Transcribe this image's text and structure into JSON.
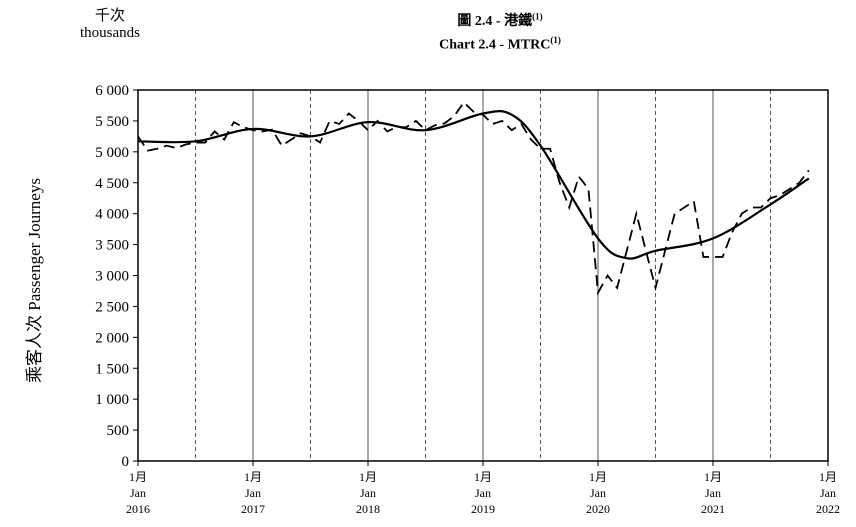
{
  "chart_data": {
    "type": "line",
    "title": "圖 2.4 -  港鐵",
    "title_sup": "(1)",
    "subtitle": "Chart 2.4 -  MTRC",
    "subtitle_sup": "(1)",
    "unit_label_zh": "千次",
    "unit_label_en": "thousands",
    "ylabel": "乘客人次  Passenger Journeys",
    "ylim": [
      0,
      6000
    ],
    "yticks": [
      0,
      500,
      1000,
      1500,
      2000,
      2500,
      3000,
      3500,
      4000,
      4500,
      5000,
      5500,
      6000
    ],
    "ytick_labels": [
      "0",
      "500",
      "1 000",
      "1 500",
      "2 000",
      "2 500",
      "3 000",
      "3 500",
      "4 000",
      "4 500",
      "5 000",
      "5 500",
      "6 000"
    ],
    "xlim": [
      "2016-01",
      "2022-01"
    ],
    "xticks": [
      {
        "zh": "1月",
        "en": "Jan",
        "year": "2016"
      },
      {
        "zh": "1月",
        "en": "Jan",
        "year": "2017"
      },
      {
        "zh": "1月",
        "en": "Jan",
        "year": "2018"
      },
      {
        "zh": "1月",
        "en": "Jan",
        "year": "2019"
      },
      {
        "zh": "1月",
        "en": "Jan",
        "year": "2020"
      },
      {
        "zh": "1月",
        "en": "Jan",
        "year": "2021"
      },
      {
        "zh": "1月",
        "en": "Jan",
        "year": "2022"
      }
    ],
    "series": [
      {
        "style": "dashed",
        "x": [
          "2016-01",
          "2016-02",
          "2016-03",
          "2016-04",
          "2016-05",
          "2016-06",
          "2016-07",
          "2016-08",
          "2016-09",
          "2016-10",
          "2016-11",
          "2016-12",
          "2017-01",
          "2017-02",
          "2017-03",
          "2017-04",
          "2017-05",
          "2017-06",
          "2017-07",
          "2017-08",
          "2017-09",
          "2017-10",
          "2017-11",
          "2017-12",
          "2018-01",
          "2018-02",
          "2018-03",
          "2018-04",
          "2018-05",
          "2018-06",
          "2018-07",
          "2018-08",
          "2018-09",
          "2018-10",
          "2018-11",
          "2018-12",
          "2019-01",
          "2019-02",
          "2019-03",
          "2019-04",
          "2019-05",
          "2019-06",
          "2019-07",
          "2019-08",
          "2019-09",
          "2019-10",
          "2019-11",
          "2019-12",
          "2020-01",
          "2020-02",
          "2020-03",
          "2020-04",
          "2020-05",
          "2020-06",
          "2020-07",
          "2020-08",
          "2020-09",
          "2020-10",
          "2020-11",
          "2020-12",
          "2021-01",
          "2021-02",
          "2021-03",
          "2021-04",
          "2021-05",
          "2021-06",
          "2021-07",
          "2021-08",
          "2021-09",
          "2021-10",
          "2021-11"
        ],
        "values": [
          5250,
          5020,
          5050,
          5100,
          5060,
          5120,
          5150,
          5150,
          5330,
          5200,
          5480,
          5400,
          5350,
          5330,
          5360,
          5100,
          5200,
          5300,
          5250,
          5150,
          5500,
          5450,
          5620,
          5500,
          5350,
          5500,
          5330,
          5400,
          5400,
          5500,
          5350,
          5430,
          5460,
          5580,
          5800,
          5650,
          5600,
          5450,
          5500,
          5350,
          5450,
          5200,
          5050,
          5050,
          4500,
          4100,
          4600,
          4400,
          2720,
          3000,
          2800,
          3400,
          4000,
          3400,
          2800,
          3400,
          4000,
          4100,
          4200,
          3300,
          3300,
          3300,
          3700,
          4000,
          4100,
          4100,
          4250,
          4300,
          4400,
          4500,
          4700
        ]
      },
      {
        "style": "solid",
        "x": [
          "2016-01",
          "2016-07",
          "2017-01",
          "2017-07",
          "2018-01",
          "2018-07",
          "2019-01",
          "2019-04",
          "2019-07",
          "2020-01",
          "2020-04",
          "2020-07",
          "2021-01",
          "2021-07",
          "2021-11"
        ],
        "values": [
          5170,
          5170,
          5370,
          5250,
          5480,
          5350,
          5620,
          5600,
          5100,
          3600,
          3280,
          3400,
          3600,
          4150,
          4570
        ]
      }
    ],
    "grid": {
      "solid_vertical": "January",
      "dashed_vertical": "July",
      "horizontal": false
    },
    "legend": "none"
  }
}
